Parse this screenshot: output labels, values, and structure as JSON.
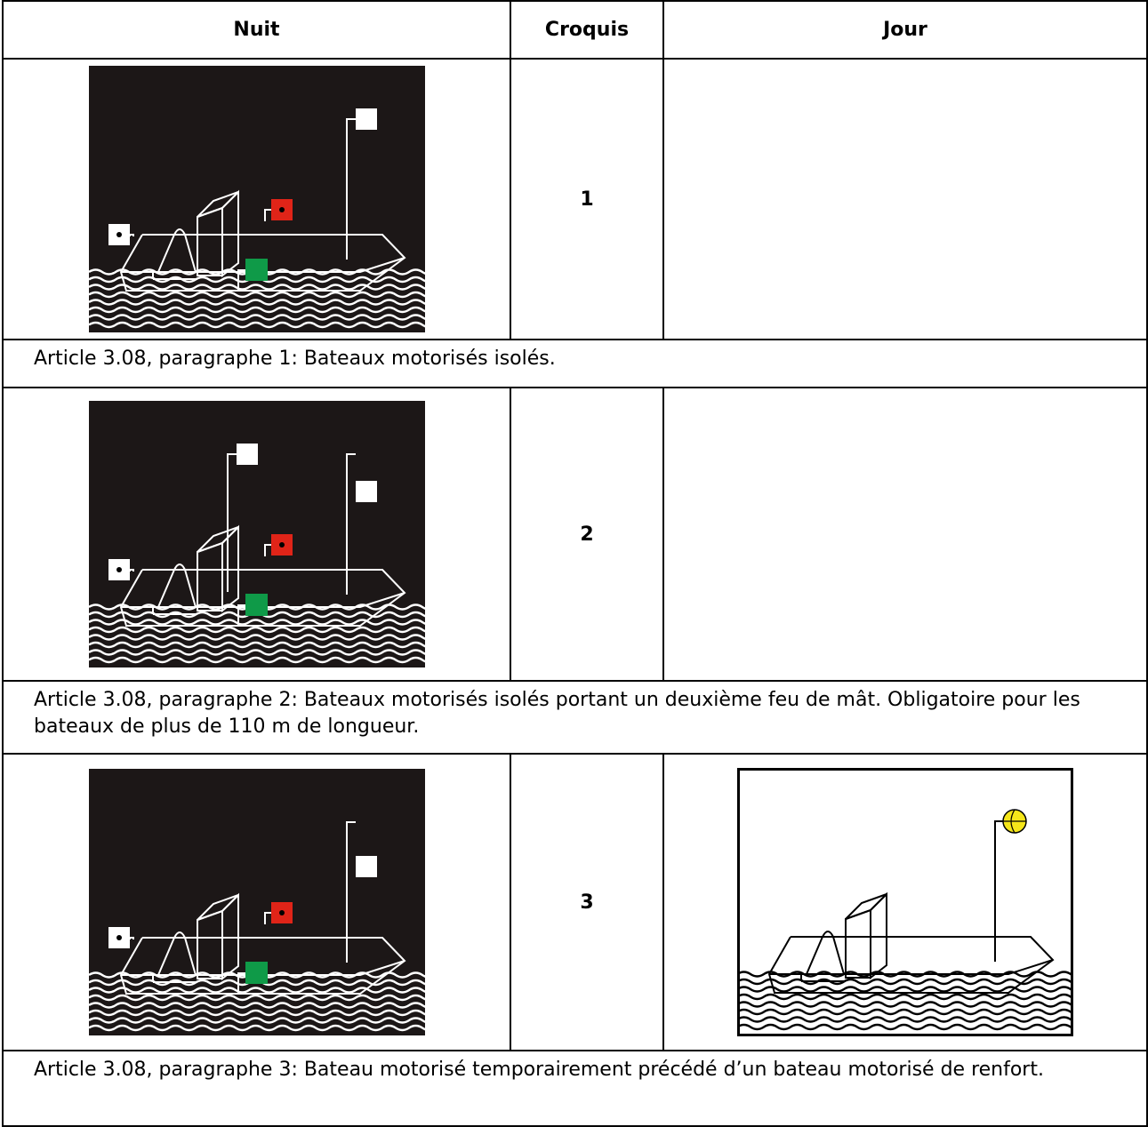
{
  "table": {
    "header": [
      "Nuit",
      "Croquis",
      "Jour"
    ],
    "rows": [
      {
        "number": "1",
        "caption": "Article 3.08, paragraphe 1: Bateaux motorisés isolés."
      },
      {
        "number": "2",
        "caption": "Article 3.08, paragraphe 2: Bateaux motorisés isolés portant un deuxième feu de mât. Obligatoire pour les bateaux de plus de 110 m de longueur."
      },
      {
        "number": "3",
        "caption": "Article 3.08, paragraphe 3: Bateau motorisé temporairement précédé d’un bateau motorisé de renfort."
      }
    ]
  }
}
